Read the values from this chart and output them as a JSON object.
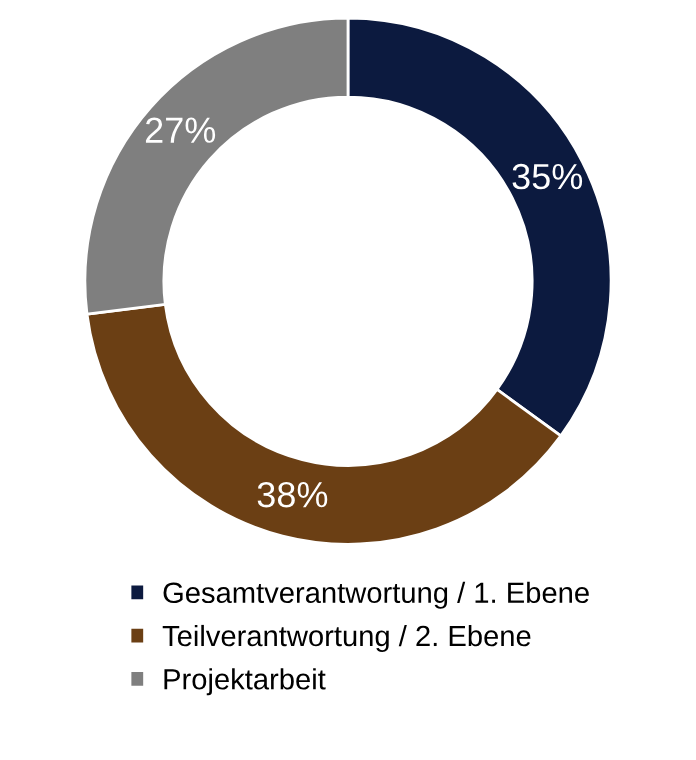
{
  "chart_data": {
    "type": "donut",
    "categories": [
      "Gesamtverantwortung / 1. Ebene",
      "Teilverantwortung / 2. Ebene",
      "Projektarbeit"
    ],
    "values": [
      35,
      38,
      27
    ],
    "colors": [
      "#0c1a3f",
      "#6b3f14",
      "#7f7f7f"
    ],
    "value_labels": [
      "35%",
      "38%",
      "27%"
    ],
    "legend": "bottom"
  }
}
